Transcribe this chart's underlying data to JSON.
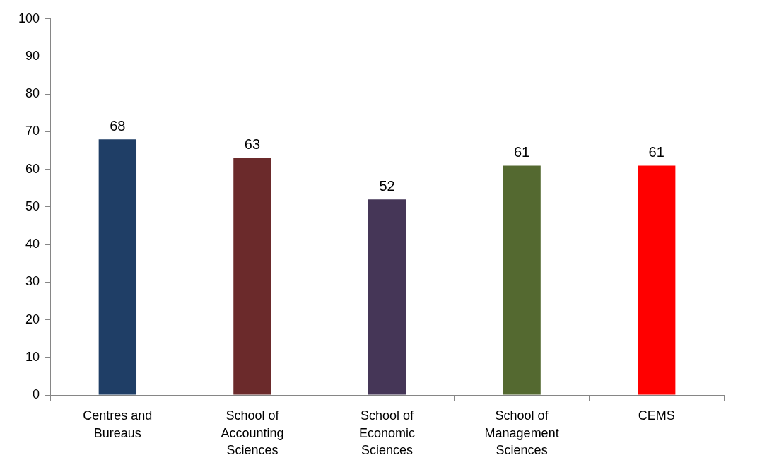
{
  "chart_data": {
    "type": "bar",
    "categories": [
      "Centres and Bureaus",
      "School of Accounting Sciences",
      "School of Economic Sciences",
      "School of Management Sciences",
      "CEMS"
    ],
    "values": [
      68,
      63,
      52,
      61,
      61
    ],
    "colors": [
      "#1f3e66",
      "#6b2a2b",
      "#453657",
      "#546930",
      "#ff0000"
    ],
    "ylim": [
      0,
      100
    ],
    "yticks": [
      0,
      10,
      20,
      30,
      40,
      50,
      60,
      70,
      80,
      90,
      100
    ],
    "grid": false,
    "legend": false,
    "data_labels": true
  }
}
